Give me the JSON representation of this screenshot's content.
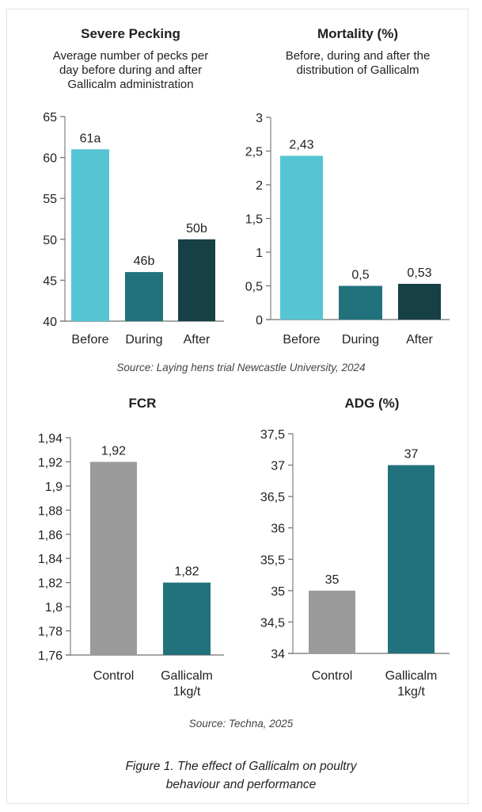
{
  "sources": {
    "top": "Source: Laying hens trial Newcastle University, 2024",
    "bottom": "Source: Techna, 2025"
  },
  "caption": {
    "line1": "Figure 1. The effect of Gallicalm on poultry",
    "line2": "behaviour and performance"
  },
  "chart_data": [
    {
      "id": "pecking",
      "type": "bar",
      "title": "Severe Pecking",
      "subtitle": [
        "Average number of pecks per",
        "day before during and after",
        "Gallicalm administration"
      ],
      "categories": [
        "Before",
        "During",
        "After"
      ],
      "values": [
        61,
        46,
        50
      ],
      "data_labels": [
        "61a",
        "46b",
        "50b"
      ],
      "colors": [
        "#56c5d3",
        "#22727e",
        "#173f46"
      ],
      "ylim": [
        40,
        65
      ],
      "yticks": [
        40,
        45,
        50,
        55,
        60,
        65
      ],
      "ytick_labels": [
        "40",
        "45",
        "50",
        "55",
        "60",
        "65"
      ],
      "xlabel": "",
      "ylabel": "",
      "grid": false
    },
    {
      "id": "mortality",
      "type": "bar",
      "title": "Mortality (%)",
      "subtitle": [
        "Before, during and after the",
        "distribution of Gallicalm"
      ],
      "categories": [
        "Before",
        "During",
        "After"
      ],
      "values": [
        2.43,
        0.5,
        0.53
      ],
      "data_labels": [
        "2,43",
        "0,5",
        "0,53"
      ],
      "colors": [
        "#56c5d3",
        "#22727e",
        "#173f46"
      ],
      "ylim": [
        0,
        3
      ],
      "yticks": [
        0,
        0.5,
        1,
        1.5,
        2,
        2.5,
        3
      ],
      "ytick_labels": [
        "0",
        "0,5",
        "1",
        "1,5",
        "2",
        "2,5",
        "3"
      ],
      "xlabel": "",
      "ylabel": "",
      "grid": false
    },
    {
      "id": "fcr",
      "type": "bar",
      "title": "FCR",
      "subtitle": [],
      "categories": [
        [
          "Control"
        ],
        [
          "Gallicalm",
          "1kg/t"
        ]
      ],
      "values": [
        1.92,
        1.82
      ],
      "data_labels": [
        "1,92",
        "1,82"
      ],
      "colors": [
        "#9b9b9b",
        "#22727e"
      ],
      "ylim": [
        1.76,
        1.94
      ],
      "yticks": [
        1.76,
        1.78,
        1.8,
        1.82,
        1.84,
        1.86,
        1.88,
        1.9,
        1.92,
        1.94
      ],
      "ytick_labels": [
        "1,76",
        "1,78",
        "1,8",
        "1,82",
        "1,84",
        "1,86",
        "1,88",
        "1,9",
        "1,92",
        "1,94"
      ],
      "xlabel": "",
      "ylabel": "",
      "grid": false
    },
    {
      "id": "adg",
      "type": "bar",
      "title": "ADG (%)",
      "subtitle": [],
      "categories": [
        [
          "Control"
        ],
        [
          "Gallicalm",
          "1kg/t"
        ]
      ],
      "values": [
        35,
        37
      ],
      "data_labels": [
        "35",
        "37"
      ],
      "colors": [
        "#9b9b9b",
        "#22727e"
      ],
      "ylim": [
        34,
        37.5
      ],
      "yticks": [
        34,
        34.5,
        35,
        35.5,
        36,
        36.5,
        37,
        37.5
      ],
      "ytick_labels": [
        "34",
        "34,5",
        "35",
        "35,5",
        "36",
        "36,5",
        "37",
        "37,5"
      ],
      "xlabel": "",
      "ylabel": "",
      "grid": false
    }
  ]
}
